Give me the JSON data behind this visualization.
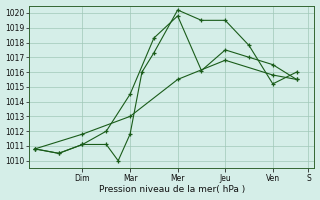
{
  "title": "",
  "xlabel": "Pression niveau de la mer( hPa )",
  "ylabel": "",
  "ylim": [
    1009.5,
    1020.5
  ],
  "yticks": [
    1010,
    1011,
    1012,
    1013,
    1014,
    1015,
    1016,
    1017,
    1018,
    1019,
    1020
  ],
  "background_color": "#d5eee8",
  "grid_color": "#a0c8b8",
  "line_color": "#1a5c1a",
  "figsize": [
    3.2,
    2.0
  ],
  "dpi": 100,
  "lines": [
    {
      "x": [
        0,
        2,
        4,
        6,
        7,
        8,
        9,
        10,
        12,
        14,
        16,
        18,
        20,
        22
      ],
      "y": [
        1010.8,
        1010.5,
        1011.1,
        1011.1,
        1010.0,
        1011.8,
        1016.0,
        1017.3,
        1020.2,
        1019.5,
        1019.5,
        1017.8,
        1015.2,
        1016.0
      ]
    },
    {
      "x": [
        0,
        2,
        4,
        6,
        8,
        10,
        12,
        14,
        16,
        18,
        20,
        22
      ],
      "y": [
        1010.8,
        1010.5,
        1011.1,
        1012.0,
        1014.5,
        1018.3,
        1019.8,
        1016.1,
        1017.5,
        1017.0,
        1016.5,
        1015.5
      ]
    },
    {
      "x": [
        0,
        4,
        8,
        12,
        16,
        20,
        22
      ],
      "y": [
        1010.8,
        1011.8,
        1013.0,
        1015.5,
        1016.8,
        1015.8,
        1015.5
      ]
    }
  ],
  "xtick_positions": [
    4,
    8,
    12,
    16,
    20,
    23
  ],
  "xtick_labels": [
    "Dim",
    "Mar",
    "Mer",
    "Jeu",
    "Ven",
    "S"
  ],
  "xlim": [
    -0.5,
    23.5
  ]
}
